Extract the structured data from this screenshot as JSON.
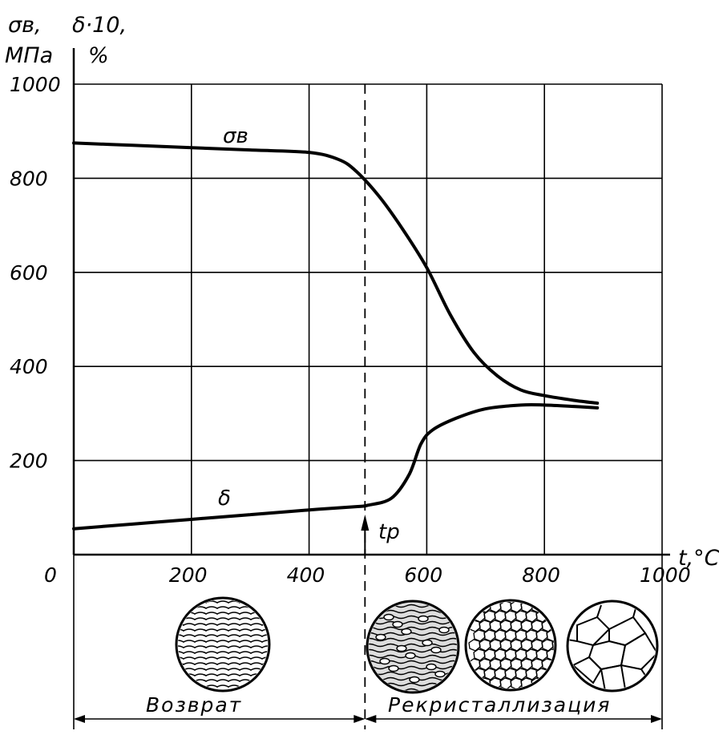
{
  "chart_data": {
    "type": "line",
    "y_axis_label_line1": "σв,",
    "y_axis_unit_line1": "МПа",
    "y2_axis_label_line1": "δ·10,",
    "y2_axis_unit_line1": "%",
    "x_axis_label": "t,°C",
    "origin_label": "0",
    "ylim": [
      0,
      1000
    ],
    "xlim": [
      0,
      1000
    ],
    "y_ticks": [
      "1000",
      "800",
      "600",
      "400",
      "200"
    ],
    "x_ticks": [
      "200",
      "400",
      "600",
      "800",
      "1000"
    ],
    "grid": true,
    "series": [
      {
        "name": "σв",
        "x": [
          0,
          100,
          200,
          300,
          400,
          450,
          480,
          520,
          560,
          600,
          640,
          680,
          720,
          760,
          800,
          850,
          890
        ],
        "y": [
          875,
          870,
          865,
          860,
          855,
          840,
          815,
          760,
          690,
          610,
          510,
          430,
          380,
          350,
          338,
          328,
          322
        ]
      },
      {
        "name": "δ",
        "x": [
          0,
          100,
          200,
          300,
          400,
          480,
          500,
          540,
          570,
          590,
          610,
          650,
          700,
          760,
          800,
          850,
          890
        ],
        "y": [
          55,
          65,
          75,
          85,
          95,
          102,
          105,
          120,
          170,
          235,
          265,
          290,
          310,
          318,
          318,
          315,
          312
        ]
      }
    ],
    "annotations": {
      "marker": {
        "label": "tр",
        "x": 495
      },
      "zones": [
        {
          "label": "Возврат",
          "x_range": [
            0,
            495
          ]
        },
        {
          "label": "Рекристаллизация",
          "x_range": [
            495,
            1000
          ]
        }
      ]
    }
  }
}
